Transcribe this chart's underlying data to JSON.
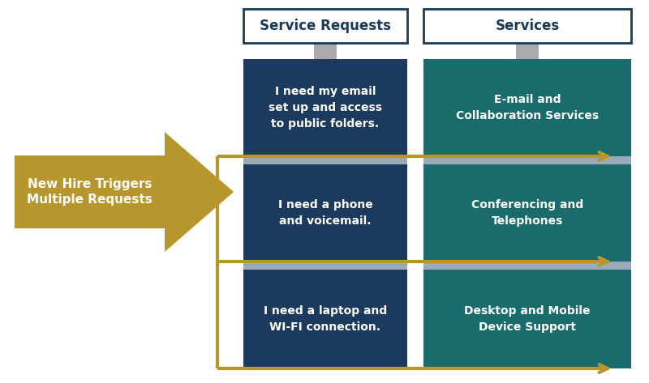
{
  "bg_color": "#ffffff",
  "title_box_border": "#1a3a5c",
  "title_box_bg": "#ffffff",
  "sr_title": "Service Requests",
  "svc_title": "Services",
  "sr_box_color": "#1c3a5e",
  "svc_box_color": "#1a6b6b",
  "arrow_color": "#b8962e",
  "text_color_white": "#ffffff",
  "text_color_dark": "#1a3a5c",
  "requests": [
    "I need my email\nset up and access\nto public folders.",
    "I need a phone\nand voicemail.",
    "I need a laptop and\nWI-FI connection."
  ],
  "services": [
    "E-mail and\nCollaboration Services",
    "Conferencing and\nTelephones",
    "Desktop and Mobile\nDevice Support"
  ],
  "trigger_text": "New Hire Triggers\nMultiple Requests",
  "trigger_color": "#b8962e",
  "trigger_text_color": "#ffffff",
  "separator_color": "#9aaabb",
  "title_fontsize": 12,
  "body_fontsize": 10,
  "trigger_fontsize": 11
}
